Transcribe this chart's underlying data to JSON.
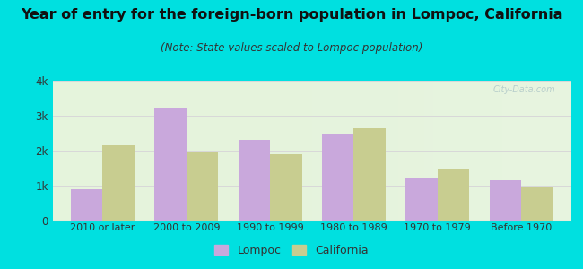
{
  "title": "Year of entry for the foreign-born population in Lompoc, California",
  "subtitle": "(Note: State values scaled to Lompoc population)",
  "categories": [
    "2010 or later",
    "2000 to 2009",
    "1990 to 1999",
    "1980 to 1989",
    "1970 to 1979",
    "Before 1970"
  ],
  "lompoc_values": [
    900,
    3200,
    2300,
    2500,
    1200,
    1150
  ],
  "california_values": [
    2150,
    1950,
    1900,
    2650,
    1500,
    950
  ],
  "lompoc_color": "#c9a8dc",
  "california_color": "#c8cd90",
  "background_outer": "#00e0e0",
  "background_inner": "#e8f5e0",
  "ylim": [
    0,
    4000
  ],
  "yticks": [
    0,
    1000,
    2000,
    3000,
    4000
  ],
  "ytick_labels": [
    "0",
    "1k",
    "2k",
    "3k",
    "4k"
  ],
  "title_fontsize": 11.5,
  "subtitle_fontsize": 8.5,
  "bar_width": 0.38,
  "grid_color": "#d8d8d8",
  "text_color": "#333333",
  "watermark_color": "#b0c8c8"
}
